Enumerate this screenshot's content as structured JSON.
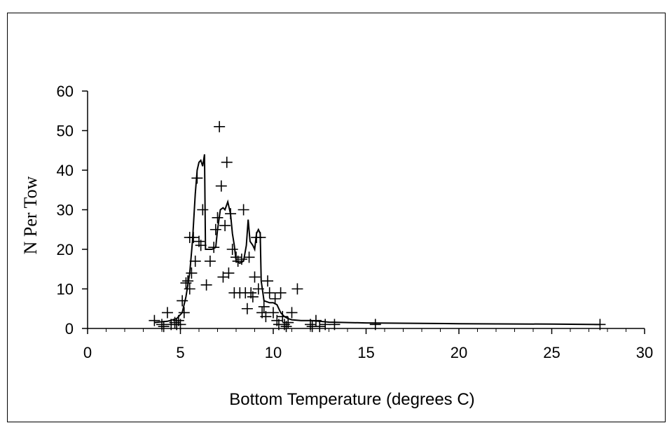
{
  "chart_data": {
    "type": "scatter",
    "title": "",
    "xlabel": "Bottom Temperature (degrees C)",
    "ylabel": "N Per Tow",
    "xlim": [
      0,
      30
    ],
    "ylim": [
      0,
      60
    ],
    "x_ticks": [
      0,
      5,
      10,
      15,
      20,
      25,
      30
    ],
    "y_ticks": [
      0,
      10,
      20,
      30,
      40,
      50,
      60
    ],
    "x_tick_labels": [
      "0",
      "5",
      "10",
      "15",
      "20",
      "25",
      "30"
    ],
    "y_tick_labels": [
      "0",
      "10",
      "20",
      "30",
      "40",
      "50",
      "60"
    ],
    "grid": false,
    "legend": "none",
    "series": [
      {
        "kind": "points",
        "marker": "plus",
        "points": [
          [
            3.6,
            2
          ],
          [
            4.0,
            1
          ],
          [
            4.1,
            0.5
          ],
          [
            4.3,
            4
          ],
          [
            4.5,
            1
          ],
          [
            4.7,
            1.5
          ],
          [
            4.8,
            1
          ],
          [
            4.9,
            2
          ],
          [
            5.0,
            1
          ],
          [
            5.1,
            7
          ],
          [
            5.2,
            4
          ],
          [
            5.3,
            11.5
          ],
          [
            5.4,
            12
          ],
          [
            5.5,
            23
          ],
          [
            5.5,
            10
          ],
          [
            5.6,
            14
          ],
          [
            5.7,
            23
          ],
          [
            5.8,
            17
          ],
          [
            5.9,
            38
          ],
          [
            6.0,
            22
          ],
          [
            6.1,
            21
          ],
          [
            6.2,
            30
          ],
          [
            6.4,
            11
          ],
          [
            6.6,
            17
          ],
          [
            6.8,
            20.5
          ],
          [
            6.9,
            25
          ],
          [
            7.0,
            28
          ],
          [
            7.1,
            51
          ],
          [
            7.2,
            36
          ],
          [
            7.3,
            13
          ],
          [
            7.4,
            26
          ],
          [
            7.5,
            42
          ],
          [
            7.6,
            14
          ],
          [
            7.7,
            29
          ],
          [
            7.8,
            20
          ],
          [
            7.9,
            9
          ],
          [
            8.0,
            18
          ],
          [
            8.1,
            17
          ],
          [
            8.2,
            9
          ],
          [
            8.3,
            17.5
          ],
          [
            8.4,
            30
          ],
          [
            8.5,
            9
          ],
          [
            8.6,
            5
          ],
          [
            8.7,
            18
          ],
          [
            8.8,
            9
          ],
          [
            8.9,
            8
          ],
          [
            9.0,
            13
          ],
          [
            9.1,
            23
          ],
          [
            9.2,
            10
          ],
          [
            9.3,
            23
          ],
          [
            9.4,
            4
          ],
          [
            9.5,
            5.5
          ],
          [
            9.6,
            3
          ],
          [
            9.7,
            12
          ],
          [
            9.8,
            9
          ],
          [
            10.0,
            4
          ],
          [
            10.1,
            7.5
          ],
          [
            10.2,
            2
          ],
          [
            10.3,
            1
          ],
          [
            10.4,
            9
          ],
          [
            10.5,
            3
          ],
          [
            10.6,
            1
          ],
          [
            10.7,
            0.5
          ],
          [
            10.8,
            1.5
          ],
          [
            11.0,
            4
          ],
          [
            11.3,
            10
          ],
          [
            12.0,
            1
          ],
          [
            12.1,
            0.5
          ],
          [
            12.3,
            2
          ],
          [
            12.5,
            0.5
          ],
          [
            12.8,
            1
          ],
          [
            13.3,
            1
          ],
          [
            15.5,
            1
          ],
          [
            27.6,
            1
          ]
        ]
      },
      {
        "kind": "line",
        "points": [
          [
            3.6,
            1.5
          ],
          [
            4.3,
            1.8
          ],
          [
            4.8,
            2.5
          ],
          [
            5.1,
            4
          ],
          [
            5.3,
            8
          ],
          [
            5.5,
            14
          ],
          [
            5.65,
            22
          ],
          [
            5.8,
            34
          ],
          [
            5.9,
            40
          ],
          [
            6.0,
            42
          ],
          [
            6.1,
            42.5
          ],
          [
            6.2,
            41
          ],
          [
            6.3,
            44
          ],
          [
            6.35,
            20
          ],
          [
            6.5,
            20
          ],
          [
            6.7,
            20
          ],
          [
            6.9,
            20.5
          ],
          [
            7.0,
            25
          ],
          [
            7.15,
            30
          ],
          [
            7.3,
            30.5
          ],
          [
            7.4,
            30
          ],
          [
            7.55,
            32
          ],
          [
            7.7,
            29
          ],
          [
            7.8,
            24
          ],
          [
            7.9,
            21
          ],
          [
            8.0,
            17
          ],
          [
            8.2,
            16.5
          ],
          [
            8.4,
            17
          ],
          [
            8.55,
            21
          ],
          [
            8.65,
            27.5
          ],
          [
            8.75,
            22
          ],
          [
            8.9,
            21
          ],
          [
            9.0,
            20
          ],
          [
            9.1,
            24
          ],
          [
            9.2,
            25
          ],
          [
            9.3,
            24
          ],
          [
            9.35,
            12
          ],
          [
            9.5,
            7
          ],
          [
            9.8,
            6.5
          ],
          [
            10.0,
            6.5
          ],
          [
            10.2,
            6
          ],
          [
            10.4,
            4
          ],
          [
            10.6,
            3
          ],
          [
            10.8,
            2.5
          ],
          [
            11.0,
            2.2
          ],
          [
            11.5,
            2
          ],
          [
            12.0,
            2
          ],
          [
            12.5,
            1.8
          ],
          [
            13.0,
            1.6
          ],
          [
            15.0,
            1.4
          ],
          [
            20.0,
            1.2
          ],
          [
            25.0,
            1.1
          ],
          [
            27.6,
            1.0
          ]
        ]
      }
    ]
  }
}
